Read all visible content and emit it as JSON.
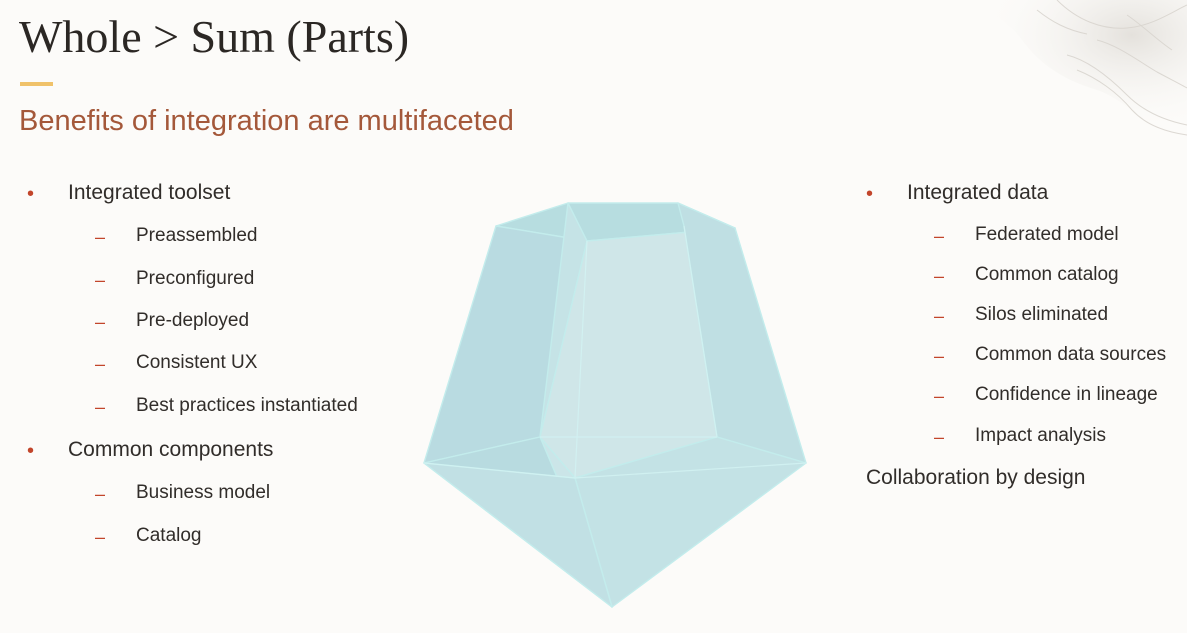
{
  "title": "Whole > Sum (Parts)",
  "subtitle": "Benefits of integration are multifaceted",
  "colors": {
    "accent_bar": "#f0c26a",
    "subtitle": "#a4583a",
    "bullet": "#c2452b",
    "gem_fill": "#a9d6dc",
    "gem_edge": "#bfeaea"
  },
  "left_list": {
    "group1": {
      "label": "Integrated toolset",
      "items": [
        "Preassembled",
        "Preconfigured",
        "Pre-deployed",
        "Consistent UX",
        "Best practices instantiated"
      ]
    },
    "group2": {
      "label": "Common components",
      "items": [
        "Business model",
        "Catalog"
      ]
    }
  },
  "right_list": {
    "group1": {
      "label": "Integrated data",
      "items": [
        "Federated model",
        "Common catalog",
        "Silos eliminated",
        "Common data sources",
        "Confidence in lineage",
        "Impact analysis"
      ]
    },
    "standalone": "Collaboration by design"
  },
  "symbols": {
    "bullet": "•",
    "dash": "–"
  }
}
